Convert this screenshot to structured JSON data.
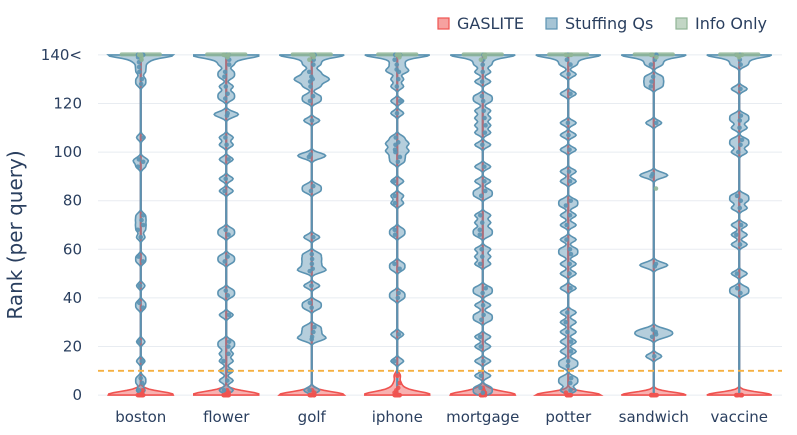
{
  "chart_data": {
    "type": "violin",
    "ylabel": "Rank (per query)",
    "y_range": [
      -2,
      142
    ],
    "y_ticks": [
      0,
      20,
      40,
      60,
      80,
      100,
      120,
      140
    ],
    "y_tick_labels": [
      "0",
      "20",
      "40",
      "60",
      "80",
      "100",
      "120",
      "140<"
    ],
    "threshold": 10,
    "threshold_color": "#f5b041",
    "categories": [
      "boston",
      "flower",
      "golf",
      "iphone",
      "mortgage",
      "potter",
      "sandwich",
      "vaccine"
    ],
    "legend_position": "top-right",
    "series": [
      {
        "name": "GASLITE",
        "color": "#ef5350",
        "values": [
          [
            0,
            0,
            0,
            0,
            0,
            0,
            0,
            0,
            0,
            0,
            1,
            1,
            2
          ],
          [
            0,
            0,
            0,
            0,
            0,
            0,
            0,
            0,
            0,
            0,
            1,
            1,
            1,
            2
          ],
          [
            0,
            0,
            0,
            0,
            0,
            0,
            0,
            0,
            0,
            0,
            0,
            1,
            2
          ],
          [
            0,
            0,
            0,
            0,
            0,
            0,
            0,
            0,
            0,
            1,
            1,
            2,
            3,
            5,
            8
          ],
          [
            0,
            0,
            0,
            0,
            0,
            0,
            0,
            0,
            0,
            0,
            0,
            1,
            1,
            2,
            3
          ],
          [
            0,
            0,
            0,
            0,
            0,
            0,
            0,
            0,
            0,
            0,
            0,
            0,
            1
          ],
          [
            0,
            0,
            0,
            0,
            0,
            0,
            0,
            0,
            0,
            0,
            0,
            0
          ],
          [
            0,
            0,
            0,
            0,
            0,
            0,
            0,
            0,
            0,
            0,
            0,
            0
          ]
        ]
      },
      {
        "name": "Stuffing Qs",
        "color": "#5b93b2",
        "values": [
          [
            2,
            5,
            7,
            14,
            22,
            36,
            38,
            45,
            55,
            57,
            65,
            68,
            70,
            72,
            74,
            94,
            96,
            97,
            106,
            128,
            130,
            133,
            135,
            137,
            138,
            139,
            140,
            140,
            140,
            140,
            140,
            140,
            140
          ],
          [
            2,
            6,
            10,
            14,
            17,
            20,
            22,
            33,
            41,
            43,
            55,
            57,
            66,
            68,
            84,
            89,
            97,
            103,
            106,
            115,
            116,
            122,
            124,
            127,
            131,
            133,
            136,
            138,
            139,
            140,
            140,
            140,
            140
          ],
          [
            2,
            23,
            24,
            26,
            28,
            36,
            38,
            45,
            51,
            52,
            54,
            56,
            58,
            65,
            84,
            86,
            98,
            99,
            113,
            121,
            123,
            127,
            129,
            130,
            131,
            133,
            136,
            138,
            140,
            140,
            140,
            140
          ],
          [
            14,
            25,
            40,
            42,
            52,
            54,
            66,
            68,
            79,
            82,
            88,
            96,
            98,
            100,
            101,
            103,
            104,
            106,
            116,
            121,
            127,
            130,
            133,
            134,
            136,
            138,
            140,
            140,
            140,
            140,
            140
          ],
          [
            1,
            3,
            8,
            14,
            20,
            24,
            31,
            33,
            37,
            42,
            44,
            54,
            57,
            60,
            66,
            68,
            71,
            74,
            82,
            84,
            88,
            94,
            103,
            108,
            111,
            114,
            117,
            121,
            123,
            129,
            133,
            136,
            138,
            140,
            140,
            140,
            140
          ],
          [
            2,
            5,
            7,
            12,
            14,
            18,
            22,
            26,
            30,
            34,
            44,
            50,
            54,
            58,
            60,
            64,
            70,
            74,
            78,
            80,
            88,
            92,
            101,
            107,
            112,
            124,
            132,
            136,
            138,
            140,
            140,
            140,
            140
          ],
          [
            16,
            24,
            25,
            26,
            27,
            53,
            54,
            90,
            91,
            112,
            127,
            129,
            131,
            136,
            138,
            140,
            140,
            140,
            140
          ],
          [
            42,
            44,
            50,
            62,
            66,
            70,
            77,
            80,
            82,
            100,
            103,
            105,
            110,
            113,
            115,
            126,
            136,
            138,
            140,
            140,
            140,
            140
          ]
        ]
      },
      {
        "name": "Info Only",
        "color": "#8fb596",
        "values": [
          [
            140,
            140,
            140,
            139,
            138
          ],
          [
            140,
            140,
            140,
            140,
            139
          ],
          [
            140,
            140,
            140,
            139,
            138
          ],
          [
            140,
            140,
            140,
            140,
            139
          ],
          [
            140,
            140,
            140,
            139,
            138
          ],
          [
            140,
            140,
            140,
            140,
            140
          ],
          [
            140,
            140,
            140,
            139,
            85
          ],
          [
            140,
            140,
            140,
            140,
            139
          ]
        ]
      }
    ]
  }
}
